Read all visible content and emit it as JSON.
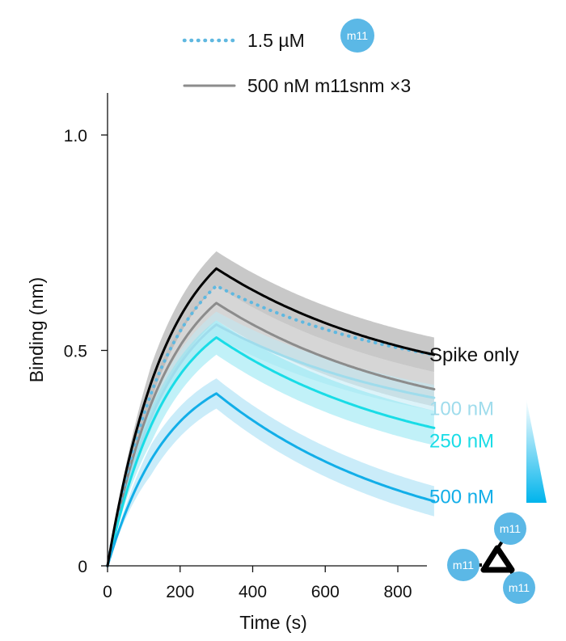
{
  "chart_data": {
    "type": "line",
    "xlabel": "Time (s)",
    "ylabel": "Binding (nm)",
    "xlim": [
      0,
      900
    ],
    "ylim": [
      0,
      1.1
    ],
    "x_ticks": [
      0,
      200,
      400,
      600,
      800
    ],
    "x_tick_labels": [
      "0",
      "200",
      "400",
      "600",
      "800"
    ],
    "y_ticks": [
      0,
      0.5,
      1.0
    ],
    "y_tick_labels": [
      "0",
      "0.5",
      "1.0"
    ],
    "grid": false,
    "legend_position": "top",
    "association_end": 300,
    "series": [
      {
        "name": "Spike only",
        "label": "Spike only",
        "color": "#000000",
        "band": "#9a9a9a",
        "style": "solid",
        "x": [
          0,
          300,
          900
        ],
        "y": [
          0,
          0.69,
          0.49
        ],
        "band_halfwidth": 0.04
      },
      {
        "name": "1.5 µM",
        "color": "#5fb8e0",
        "band": "#8fcfe8",
        "style": "dotted",
        "x": [
          0,
          300,
          900
        ],
        "y": [
          0,
          0.65,
          0.49
        ],
        "band_halfwidth": 0.0
      },
      {
        "name": "500 nM m11snm ×3",
        "color": "#8c8c8c",
        "band": "#b4b4b4",
        "style": "solid",
        "x": [
          0,
          300,
          900
        ],
        "y": [
          0,
          0.61,
          0.41
        ],
        "band_halfwidth": 0.04
      },
      {
        "name": "100 nM",
        "label": "100 nM",
        "color": "#9fdcec",
        "band": "#bfe9f4",
        "style": "solid",
        "x": [
          0,
          300,
          900
        ],
        "y": [
          0,
          0.56,
          0.39
        ],
        "band_halfwidth": 0.03
      },
      {
        "name": "250 nM",
        "label": "250 nM",
        "color": "#19dce6",
        "band": "#8ee6f3",
        "style": "solid",
        "x": [
          0,
          300,
          900
        ],
        "y": [
          0,
          0.53,
          0.32
        ],
        "band_halfwidth": 0.04
      },
      {
        "name": "500 nM",
        "label": "500 nM",
        "color": "#12aee8",
        "band": "#9fdcf4",
        "style": "solid",
        "x": [
          0,
          300,
          900
        ],
        "y": [
          0,
          0.4,
          0.15
        ],
        "band_halfwidth": 0.035
      }
    ],
    "legend": [
      {
        "label": "1.5 µM",
        "style": "dotted",
        "color": "#5fb8e0",
        "badge": "m11"
      },
      {
        "label": "500 nM m11snm ×3",
        "style": "solid",
        "color": "#8c8c8c"
      }
    ],
    "series_labels": [
      {
        "text": "Spike only",
        "color": "#111111",
        "y": 0.49
      },
      {
        "text": "100 nM",
        "color": "#9fdcec",
        "y": 0.365
      },
      {
        "text": "250 nM",
        "color": "#19dce6",
        "y": 0.29
      },
      {
        "text": "500 nM",
        "color": "#12aee8",
        "y": 0.16
      }
    ],
    "trimer_badges": [
      "m11",
      "m11",
      "m11"
    ],
    "badge_color": "#5bb8e6",
    "gradient_colors": [
      "#ffffff",
      "#00b4ec"
    ]
  }
}
